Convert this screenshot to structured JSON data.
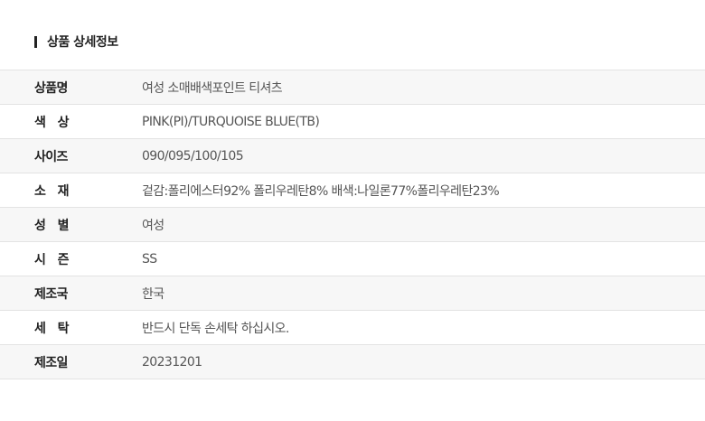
{
  "section_title": "상품 상세정보",
  "rows": [
    {
      "label": "상품명",
      "value": "여성 소매배색포인트 티셔츠"
    },
    {
      "label": "색　상",
      "value": "PINK(PI)/TURQUOISE BLUE(TB)"
    },
    {
      "label": "사이즈",
      "value": "090/095/100/105"
    },
    {
      "label": "소　재",
      "value": "겉감:폴리에스터92% 폴리우레탄8% 배색:나일론77%폴리우레탄23%"
    },
    {
      "label": "성　별",
      "value": "여성"
    },
    {
      "label": "시　즌",
      "value": "SS"
    },
    {
      "label": "제조국",
      "value": "한국"
    },
    {
      "label": "세　탁",
      "value": "반드시 단독 손세탁 하십시오."
    },
    {
      "label": "제조일",
      "value": "20231201"
    }
  ]
}
